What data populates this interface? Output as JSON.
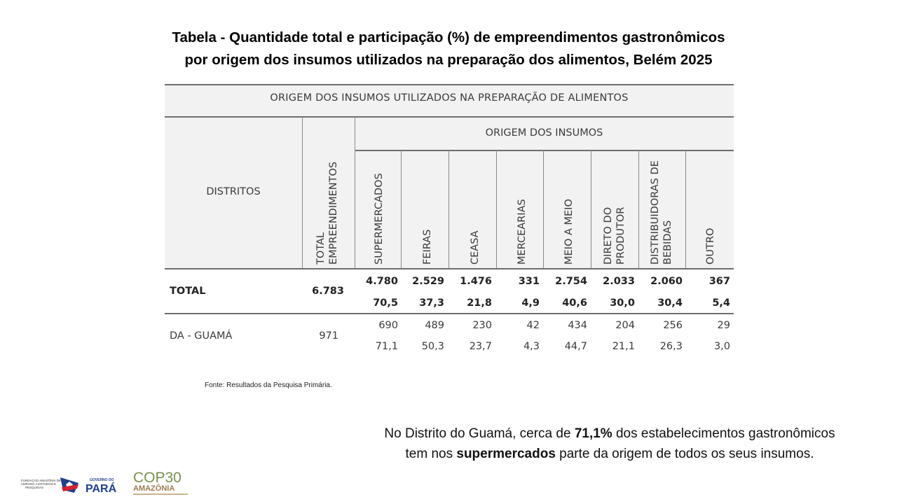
{
  "title": {
    "line1": "Tabela - Quantidade total e participação (%) de empreendimentos gastronômicos",
    "line2": "por origem dos insumos utilizados na preparação dos alimentos, Belém 2025"
  },
  "table": {
    "title": "ORIGEM DOS INSUMOS UTILIZADOS NA PREPARAÇÃO DE ALIMENTOS",
    "group_header": "ORIGEM DOS INSUMOS",
    "distritos_header": "DISTRITOS",
    "total_header": {
      "line1": "TOTAL",
      "line2": "EMPREENDIMENTOS"
    },
    "columns": [
      {
        "line1": "SUPERMERCADOS",
        "line2": ""
      },
      {
        "line1": "FEIRAS",
        "line2": ""
      },
      {
        "line1": "CEASA",
        "line2": ""
      },
      {
        "line1": "MERCEARIAS",
        "line2": ""
      },
      {
        "line1": "MEIO A MEIO",
        "line2": ""
      },
      {
        "line1": "DIRETO DO",
        "line2": "PRODUTOR"
      },
      {
        "line1": "DISTRIBUIDORAS DE",
        "line2": "BEBIDAS"
      },
      {
        "line1": "OUTRO",
        "line2": ""
      }
    ],
    "rows": [
      {
        "label": "TOTAL",
        "total": "6.783",
        "counts": [
          "4.780",
          "2.529",
          "1.476",
          "331",
          "2.754",
          "2.033",
          "2.060",
          "367"
        ],
        "percents": [
          "70,5",
          "37,3",
          "21,8",
          "4,9",
          "40,6",
          "30,0",
          "30,4",
          "5,4"
        ]
      },
      {
        "label": "DA - GUAMÁ",
        "total": "971",
        "counts": [
          "690",
          "489",
          "230",
          "42",
          "434",
          "204",
          "256",
          "29"
        ],
        "percents": [
          "71,1",
          "50,3",
          "23,7",
          "4,3",
          "44,7",
          "21,1",
          "26,3",
          "3,0"
        ]
      }
    ]
  },
  "source": "Fonte: Resultados da Pesquisa Primária.",
  "note": {
    "part1": "No Distrito do Guamá, cerca de ",
    "highlight1": "71,1%",
    "part2": " dos estabelecimentos gastronômicos",
    "part3": "tem nos ",
    "highlight2": "supermercados",
    "part4": " parte da origem de todos os seus insumos."
  },
  "logos": {
    "fapespa_text1": "FUNDAÇÃO AMAZÔNIA DE",
    "fapespa_text2": "AMPARO A ESTUDOS E",
    "fapespa_text3": "PESQUISAS",
    "governo": "GOVERNO DO",
    "para": "PARÁ",
    "cop": "COP30",
    "amazonia": "AMAZÔNIA"
  },
  "colors": {
    "header_bg": "#f2f2f2",
    "rule": "#6e6e6e",
    "para_blue": "#1f3f8f",
    "para_red": "#d8232a",
    "cop_brown": "#9c7b4e"
  }
}
